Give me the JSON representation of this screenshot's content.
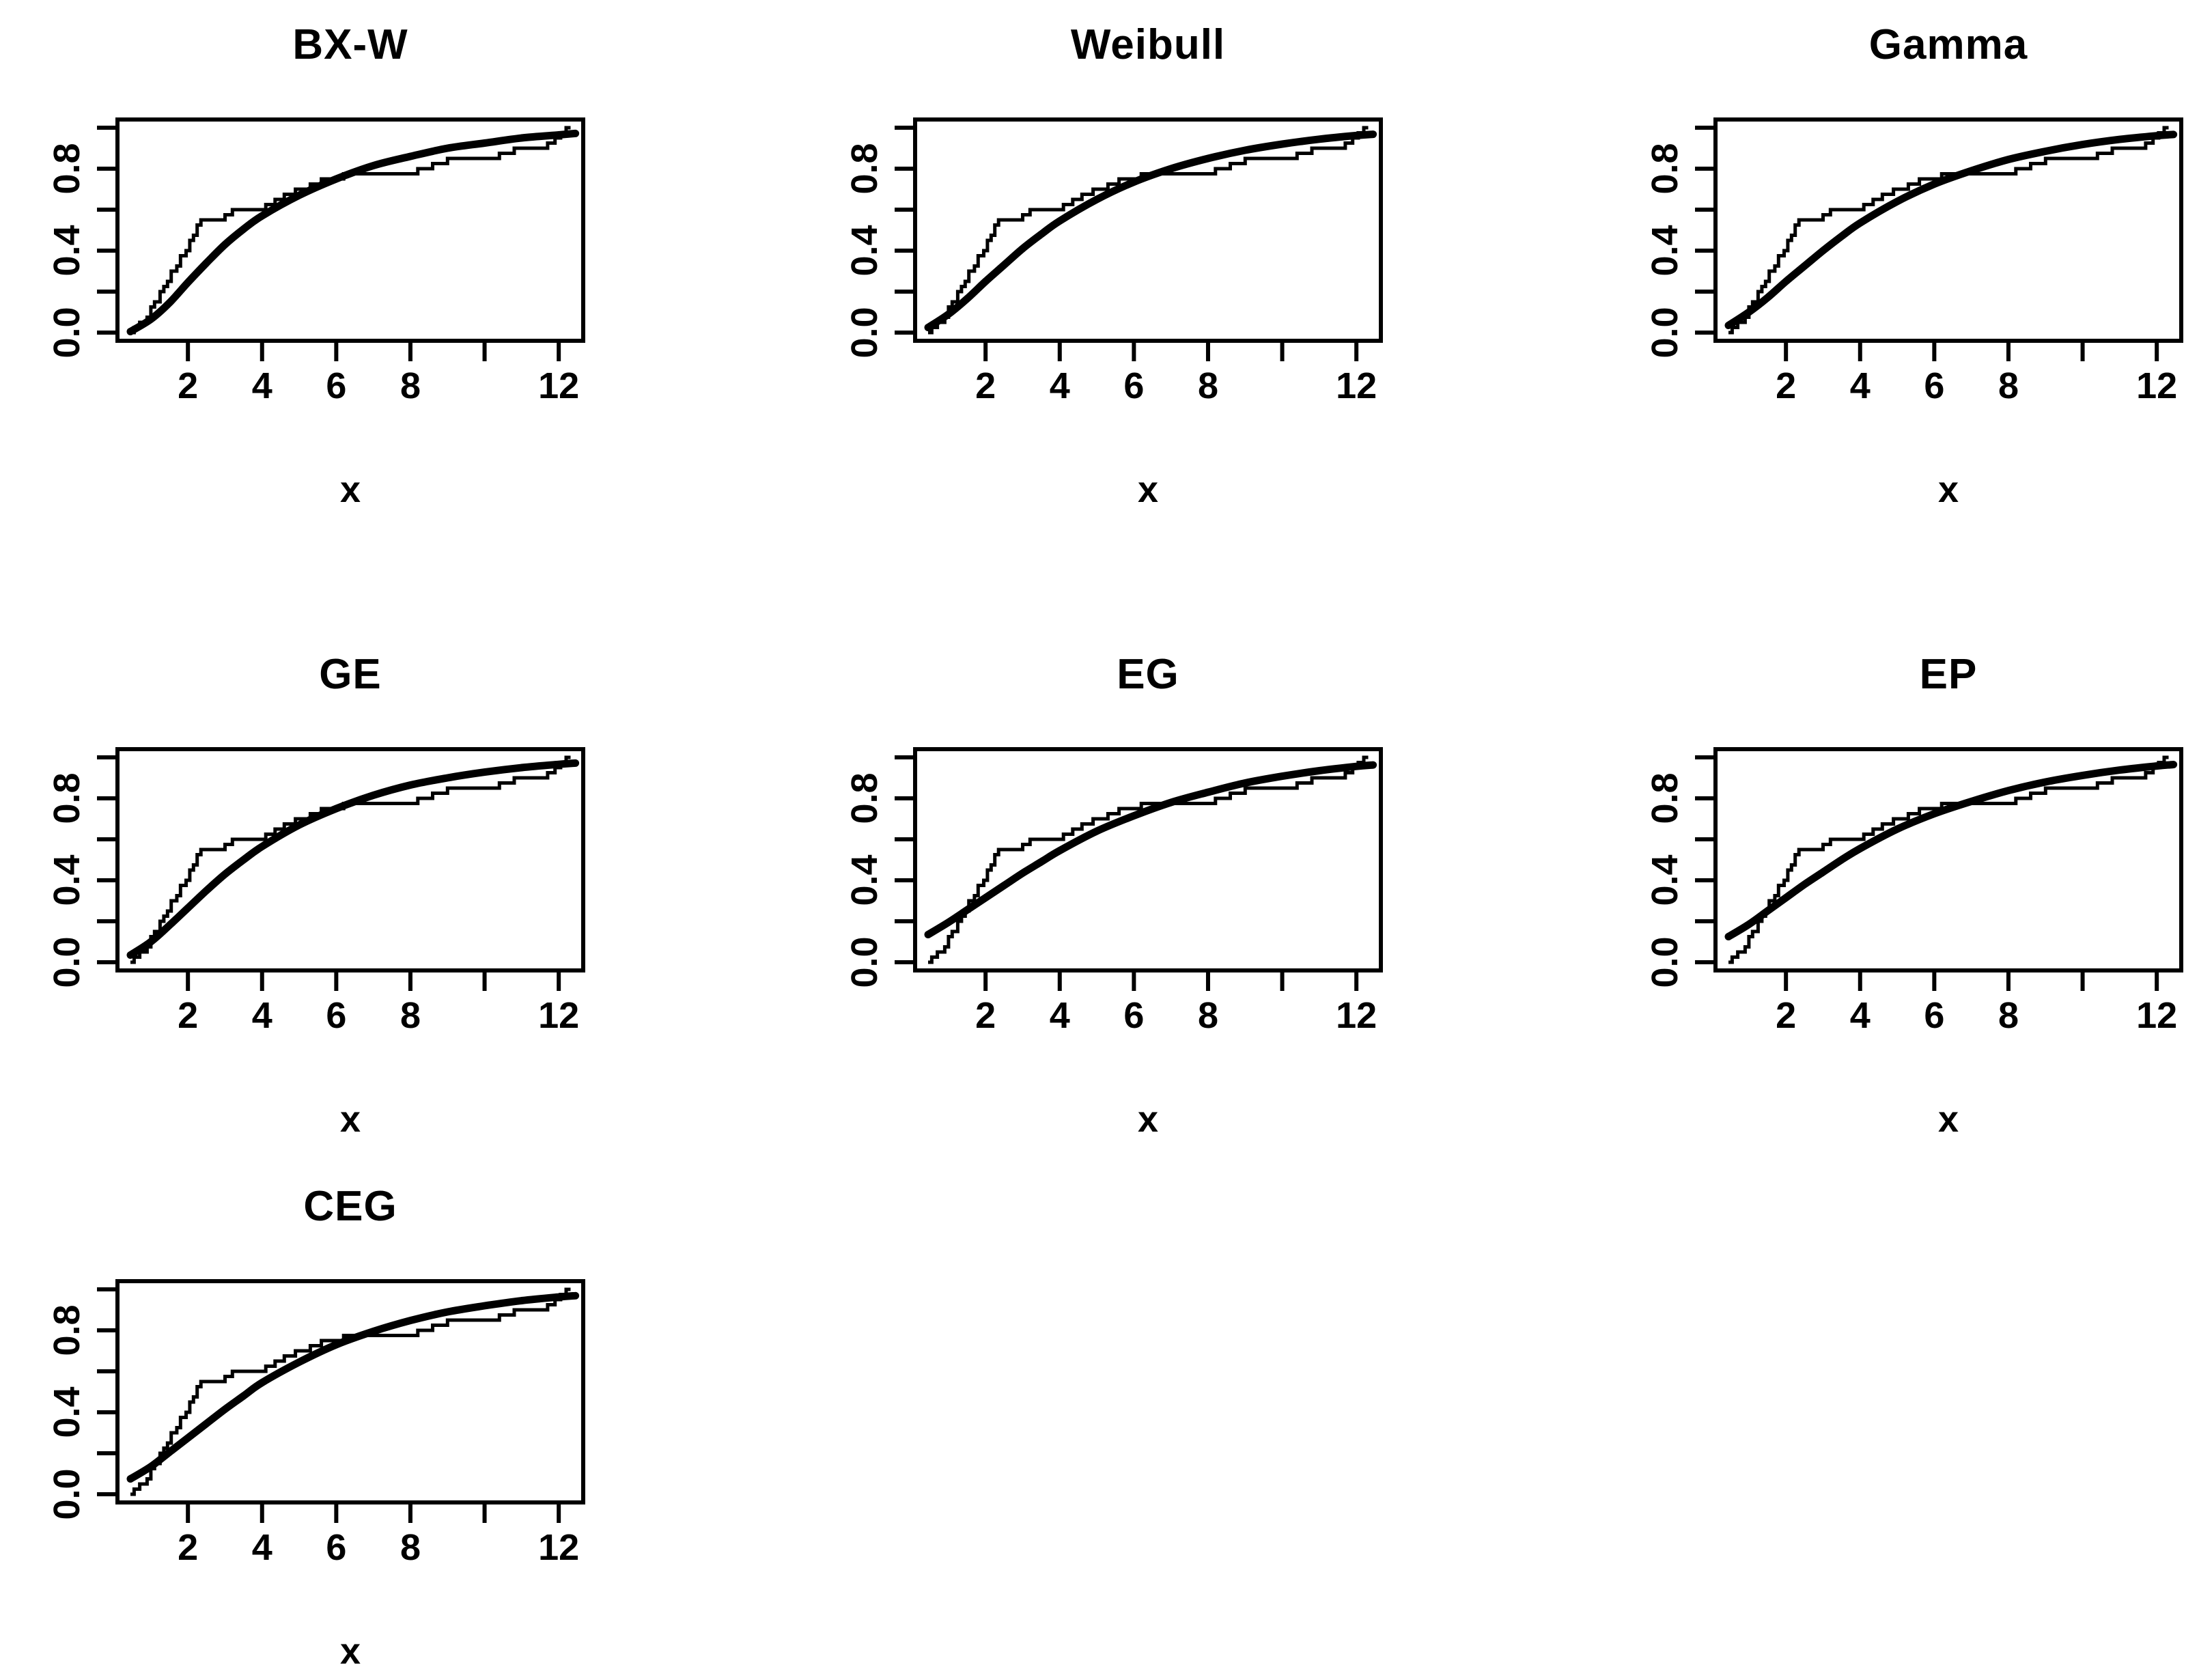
{
  "page": {
    "background": "#ffffff",
    "foreground": "#000000"
  },
  "chart_data": {
    "type": "line",
    "subtype": "empirical-cdf-vs-fitted-cdf",
    "layout": "3-column grid, 7 panels (last row has 1 panel)",
    "grid": "off",
    "legend": "none",
    "line_color": "#000000",
    "axes": {
      "xlabel": "x",
      "xlim": [
        0.1,
        12.66
      ],
      "ylim": [
        -0.04,
        1.04
      ],
      "x_ticks": [
        2,
        4,
        6,
        8,
        10,
        12
      ],
      "x_tick_labels": [
        "2",
        "4",
        "6",
        "8",
        "",
        "12"
      ],
      "y_ticks": [
        0,
        0.2,
        0.4,
        0.6,
        0.8,
        1.0
      ],
      "y_tick_labels": [
        "0.0",
        "",
        "0.4",
        "",
        "0.8",
        ""
      ]
    },
    "empirical_cdf": {
      "name": "empirical-cdf-step-line",
      "style": "thin step line, identical in every panel",
      "start_x": 0.45,
      "steps": [
        [
          0.55,
          0.025
        ],
        [
          0.7,
          0.05
        ],
        [
          0.9,
          0.075
        ],
        [
          1.0,
          0.125
        ],
        [
          1.1,
          0.15
        ],
        [
          1.25,
          0.2
        ],
        [
          1.35,
          0.225
        ],
        [
          1.45,
          0.25
        ],
        [
          1.55,
          0.3
        ],
        [
          1.7,
          0.325
        ],
        [
          1.8,
          0.375
        ],
        [
          1.95,
          0.4
        ],
        [
          2.05,
          0.45
        ],
        [
          2.15,
          0.475
        ],
        [
          2.25,
          0.525
        ],
        [
          2.35,
          0.55
        ],
        [
          3.0,
          0.575
        ],
        [
          3.2,
          0.6
        ],
        [
          4.1,
          0.625
        ],
        [
          4.35,
          0.65
        ],
        [
          4.6,
          0.675
        ],
        [
          4.9,
          0.7
        ],
        [
          5.3,
          0.725
        ],
        [
          5.6,
          0.75
        ],
        [
          6.2,
          0.775
        ],
        [
          8.2,
          0.8
        ],
        [
          8.6,
          0.825
        ],
        [
          9.0,
          0.85
        ],
        [
          10.4,
          0.875
        ],
        [
          10.8,
          0.9
        ],
        [
          11.7,
          0.925
        ],
        [
          11.9,
          0.95
        ],
        [
          12.05,
          0.975
        ],
        [
          12.2,
          1.0
        ]
      ],
      "end_x": 12.32
    },
    "fitted_x": [
      0.45,
      1,
      1.5,
      2,
      2.5,
      3,
      3.5,
      4,
      5,
      6,
      7,
      8,
      9,
      10,
      11,
      12,
      12.45
    ],
    "panels": [
      {
        "title": "BX-W",
        "fitted_y": [
          0.005,
          0.065,
          0.145,
          0.245,
          0.34,
          0.43,
          0.505,
          0.57,
          0.67,
          0.75,
          0.815,
          0.86,
          0.9,
          0.925,
          0.95,
          0.965,
          0.972
        ]
      },
      {
        "title": "Weibull",
        "fitted_y": [
          0.025,
          0.09,
          0.165,
          0.25,
          0.33,
          0.41,
          0.48,
          0.545,
          0.65,
          0.735,
          0.8,
          0.85,
          0.89,
          0.92,
          0.944,
          0.962,
          0.968
        ]
      },
      {
        "title": "Gamma",
        "fitted_y": [
          0.035,
          0.1,
          0.17,
          0.25,
          0.325,
          0.4,
          0.47,
          0.535,
          0.64,
          0.725,
          0.79,
          0.845,
          0.885,
          0.918,
          0.943,
          0.961,
          0.967
        ]
      },
      {
        "title": "GE",
        "fitted_y": [
          0.035,
          0.1,
          0.18,
          0.265,
          0.35,
          0.43,
          0.5,
          0.565,
          0.67,
          0.75,
          0.815,
          0.865,
          0.9,
          0.928,
          0.95,
          0.966,
          0.972
        ]
      },
      {
        "title": "EG",
        "fitted_y": [
          0.135,
          0.195,
          0.255,
          0.315,
          0.375,
          0.435,
          0.49,
          0.545,
          0.64,
          0.715,
          0.78,
          0.83,
          0.875,
          0.908,
          0.935,
          0.956,
          0.963
        ]
      },
      {
        "title": "EP",
        "fitted_y": [
          0.125,
          0.185,
          0.25,
          0.315,
          0.38,
          0.44,
          0.5,
          0.555,
          0.65,
          0.725,
          0.785,
          0.838,
          0.88,
          0.912,
          0.938,
          0.958,
          0.965
        ]
      },
      {
        "title": "CEG",
        "fitted_y": [
          0.075,
          0.135,
          0.205,
          0.275,
          0.345,
          0.415,
          0.48,
          0.545,
          0.645,
          0.73,
          0.795,
          0.848,
          0.89,
          0.92,
          0.945,
          0.963,
          0.969
        ]
      }
    ]
  }
}
